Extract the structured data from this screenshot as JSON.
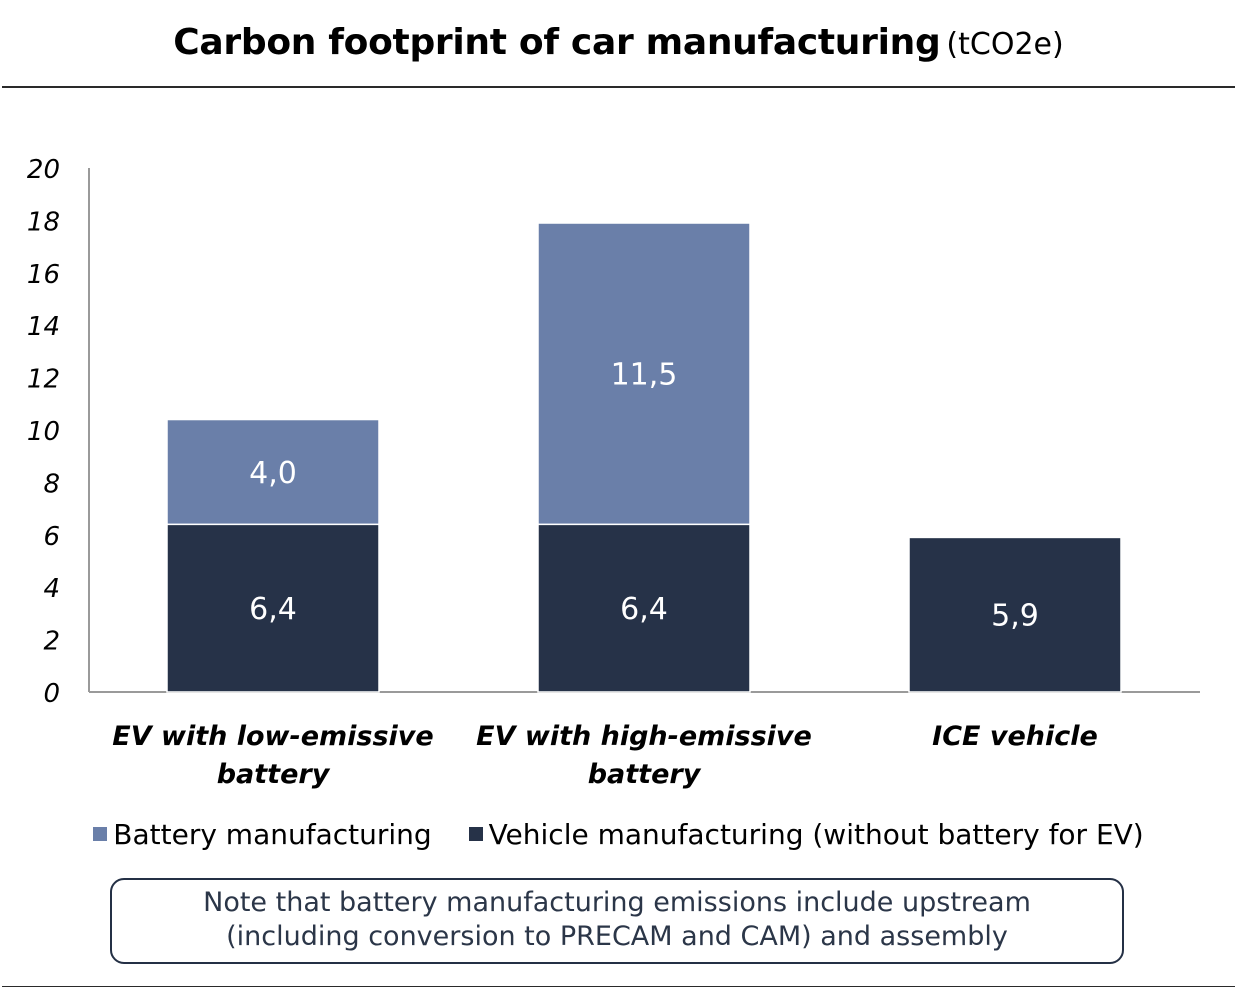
{
  "title": "Carbon footprint of car manufacturing",
  "title_unit": "(tCO2e)",
  "chart_data": {
    "type": "bar",
    "stacked": true,
    "categories": [
      "EV with low-emissive battery",
      "EV with high-emissive battery",
      "ICE vehicle"
    ],
    "series": [
      {
        "name": "Vehicle manufacturing (without battery for EV)",
        "values": [
          6.4,
          6.4,
          5.9
        ],
        "labels": [
          "6,4",
          "6,4",
          "5,9"
        ],
        "color": "#263248"
      },
      {
        "name": "Battery manufacturing",
        "values": [
          4.0,
          11.5,
          0
        ],
        "labels": [
          "4,0",
          "11,5",
          ""
        ],
        "color": "#6A7FA9"
      }
    ],
    "ylim": [
      0,
      20
    ],
    "yticks": [
      "0",
      "2",
      "4",
      "6",
      "8",
      "10",
      "12",
      "14",
      "16",
      "18",
      "20"
    ],
    "grid": false,
    "legend_position": "bottom"
  },
  "legend": [
    {
      "label": "Battery manufacturing",
      "color": "#6A7FA9"
    },
    {
      "label": "Vehicle manufacturing (without battery for EV)",
      "color": "#263248"
    }
  ],
  "note_lines": [
    "Note that battery manufacturing emissions include upstream",
    "(including conversion to PRECAM and CAM) and assembly"
  ],
  "colors": {
    "axis": "#9a9a9a",
    "note_border": "#243045",
    "note_text": "#2b3648"
  }
}
